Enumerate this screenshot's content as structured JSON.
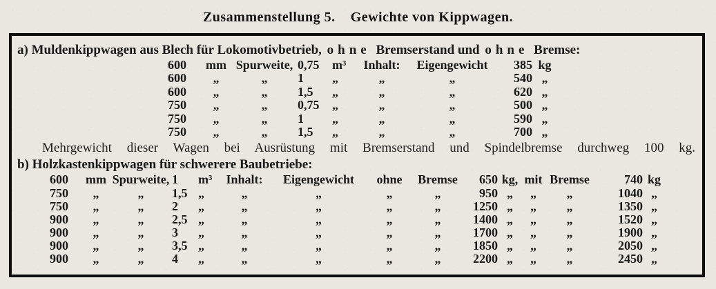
{
  "title": {
    "part1": "Zusammenstellung 5.",
    "part2": "Gewichte von Kippwagen."
  },
  "section_a": {
    "label": "a)",
    "name": "Muldenkippwagen",
    "text_after_name": "aus Blech für Lokomotivbetrieb,",
    "spaced_word_1": "ohne",
    "text_mid": "Bremserstand und",
    "spaced_word_2": "ohne",
    "text_end": "Bremse:",
    "columns": [
      "Spurweite (mm)",
      "Inhalt (m³)",
      "Eigengewicht (kg)"
    ],
    "rows": [
      [
        "600",
        "mm",
        "Spurweite,",
        "0,75",
        "m³",
        "Inhalt:",
        "Eigengewicht",
        "385",
        "kg"
      ],
      [
        "600",
        "„",
        "„",
        "1",
        "„",
        "„",
        "„",
        "540",
        "„"
      ],
      [
        "600",
        "„",
        "„",
        "1,5",
        "„",
        "„",
        "„",
        "620",
        "„"
      ],
      [
        "750",
        "„",
        "„",
        "0,75",
        "„",
        "„",
        "„",
        "500",
        "„"
      ],
      [
        "750",
        "„",
        "„",
        "1",
        "„",
        "„",
        "„",
        "590",
        "„"
      ],
      [
        "750",
        "„",
        "„",
        "1,5",
        "„",
        "„",
        "„",
        "700",
        "„"
      ]
    ],
    "note": "Mehrgewicht dieser Wagen bei Ausrüstung mit Bremserstand und Spindelbremse durchweg 100 kg."
  },
  "section_b": {
    "label": "b)",
    "name": "Holzkastenkippwagen",
    "text_after_name": "für schwerere Baubetriebe:",
    "columns": [
      "Spurweite (mm)",
      "Inhalt (m³)",
      "Eigengewicht ohne Bremse (kg)",
      "Eigengewicht mit Bremse (kg)"
    ],
    "rows": [
      [
        "600",
        "mm",
        "Spurweite,",
        "1",
        "m³",
        "Inhalt:",
        "Eigengewicht",
        "ohne",
        "Bremse",
        "650",
        "kg,",
        "mit",
        "Bremse",
        "740",
        "kg"
      ],
      [
        "750",
        "„",
        "„",
        "1,5",
        "„",
        "„",
        "„",
        "„",
        "„",
        "950",
        "„",
        "„",
        "„",
        "1040",
        "„"
      ],
      [
        "750",
        "„",
        "„",
        "2",
        "„",
        "„",
        "„",
        "„",
        "„",
        "1250",
        "„",
        "„",
        "„",
        "1350",
        "„"
      ],
      [
        "900",
        "„",
        "„",
        "2,5",
        "„",
        "„",
        "„",
        "„",
        "„",
        "1400",
        "„",
        "„",
        "„",
        "1520",
        "„"
      ],
      [
        "900",
        "„",
        "„",
        "3",
        "„",
        "„",
        "„",
        "„",
        "„",
        "1700",
        "„",
        "„",
        "„",
        "1900",
        "„"
      ],
      [
        "900",
        "„",
        "„",
        "3,5",
        "„",
        "„",
        "„",
        "„",
        "„",
        "1850",
        "„",
        "„",
        "„",
        "2050",
        "„"
      ],
      [
        "900",
        "„",
        "„",
        "4",
        "„",
        "„",
        "„",
        "„",
        "„",
        "2200",
        "„",
        "„",
        "„",
        "2450",
        "„"
      ]
    ]
  },
  "colors": {
    "paper": "#e9e7e0",
    "ink": "#1a1a18",
    "border": "#0e0e0c"
  }
}
